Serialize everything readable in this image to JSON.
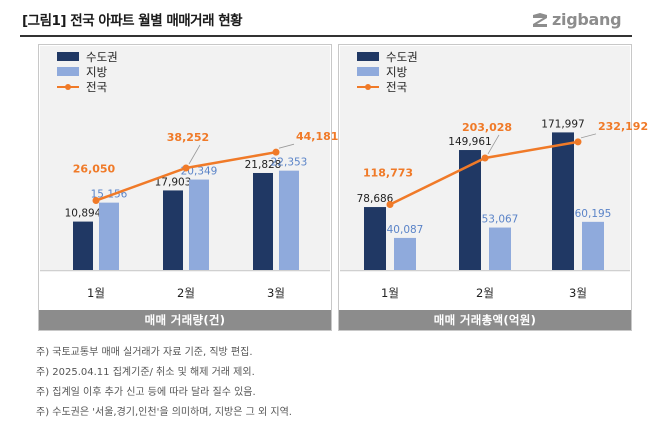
{
  "title": "[그림1] 전국 아파트 월별 매매거래 현황",
  "logo_text": "zigbang",
  "colors": {
    "metro": "#203864",
    "local": "#8faadc",
    "nation": "#f07a28"
  },
  "legend": [
    "수도권",
    "지방",
    "전국"
  ],
  "chart_data": [
    {
      "type": "bar+line",
      "title": "매매 거래량(건)",
      "categories": [
        "1월",
        "2월",
        "3월"
      ],
      "series": [
        {
          "name": "수도권",
          "kind": "bar",
          "values": [
            10894,
            17903,
            21828
          ],
          "labels": [
            "10,894",
            "17,903",
            "21,828"
          ]
        },
        {
          "name": "지방",
          "kind": "bar",
          "values": [
            15156,
            20349,
            22353
          ],
          "labels": [
            "15,156",
            "20,349",
            "22,353"
          ]
        },
        {
          "name": "전국",
          "kind": "line",
          "values": [
            26050,
            38252,
            44181
          ],
          "labels": [
            "26,050",
            "38,252",
            "44,181"
          ]
        }
      ],
      "bar_ylim": [
        0,
        45000
      ],
      "line_ylim": [
        0,
        60000
      ]
    },
    {
      "type": "bar+line",
      "title": "매매 거래총액(억원)",
      "categories": [
        "1월",
        "2월",
        "3월"
      ],
      "series": [
        {
          "name": "수도권",
          "kind": "bar",
          "values": [
            78686,
            149961,
            171997
          ],
          "labels": [
            "78,686",
            "149,961",
            "171,997"
          ]
        },
        {
          "name": "지방",
          "kind": "bar",
          "values": [
            40087,
            53067,
            60195
          ],
          "labels": [
            "40,087",
            "53,067",
            "60,195"
          ]
        },
        {
          "name": "전국",
          "kind": "line",
          "values": [
            118773,
            203028,
            232192
          ],
          "labels": [
            "118,773",
            "203,028",
            "232,192"
          ]
        }
      ],
      "bar_ylim": [
        0,
        250000
      ],
      "line_ylim": [
        0,
        290000
      ]
    }
  ],
  "notes": [
    "주) 국토교통부 매매 실거래가 자료 기준, 직방 편집.",
    "주) 2025.04.11 집계기준/ 취소 및 해제 거래 제외.",
    "주) 집계일 이후 추가 신고 등에 따라 달라 질수 있음.",
    "주) 수도권은 '서울,경기,인천'을 의미하며, 지방은 그 외 지역."
  ]
}
